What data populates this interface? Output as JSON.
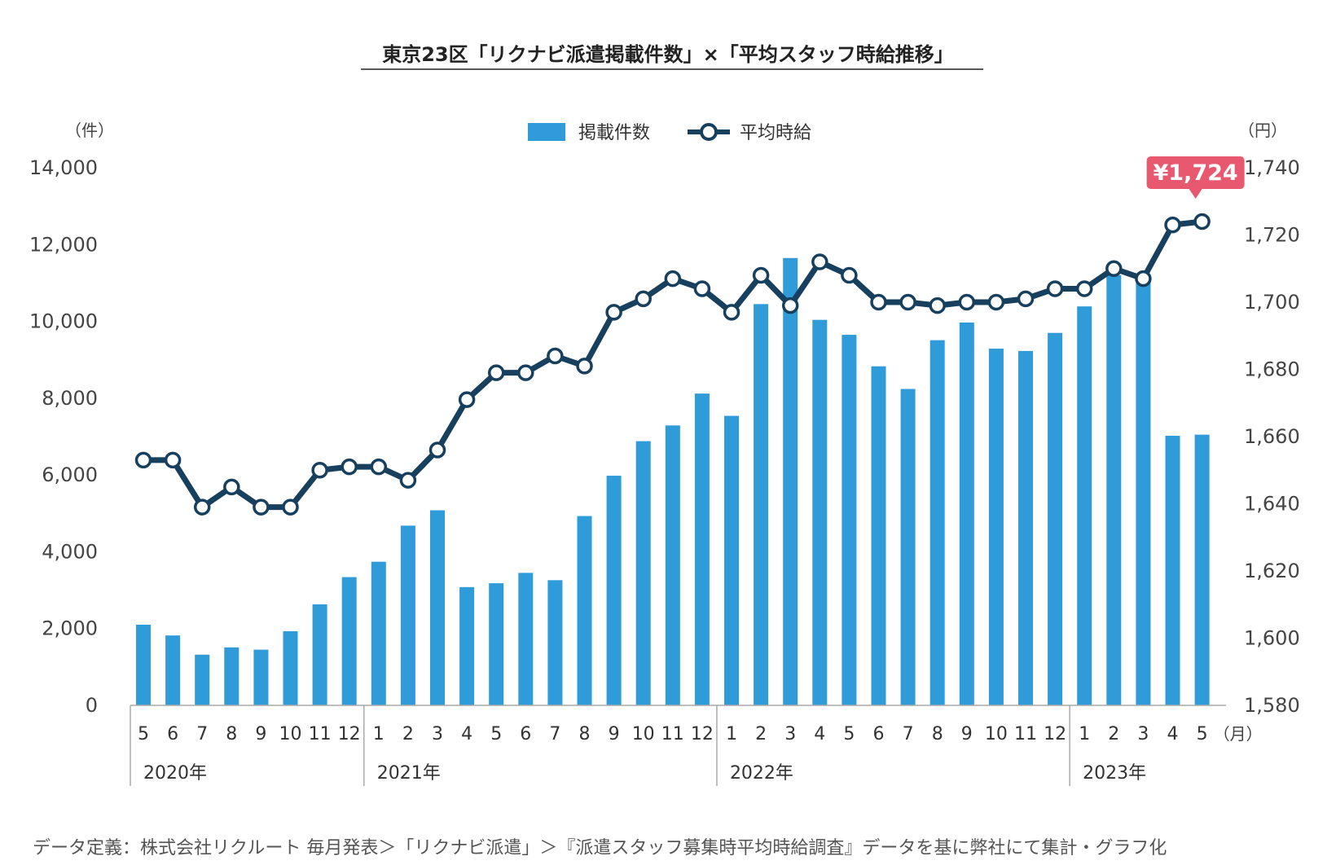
{
  "chart_data": {
    "type": "bar",
    "title": "東京23区「リクナビ派遣掲載件数」×「平均スタッフ時給推移」",
    "left_unit": "（件）",
    "right_unit": "（円）",
    "month_unit": "（月）",
    "categories": [
      "5",
      "6",
      "7",
      "8",
      "9",
      "10",
      "11",
      "12",
      "1",
      "2",
      "3",
      "4",
      "5",
      "6",
      "7",
      "8",
      "9",
      "10",
      "11",
      "12",
      "1",
      "2",
      "3",
      "4",
      "5",
      "6",
      "7",
      "8",
      "9",
      "10",
      "11",
      "12",
      "1",
      "2",
      "3",
      "4",
      "5"
    ],
    "year_groups": [
      {
        "label": "2020年",
        "start": 0,
        "count": 8
      },
      {
        "label": "2021年",
        "start": 8,
        "count": 12
      },
      {
        "label": "2022年",
        "start": 20,
        "count": 12
      },
      {
        "label": "2023年",
        "start": 32,
        "count": 5
      }
    ],
    "series": [
      {
        "name": "掲載件数",
        "type": "bar",
        "axis": "left",
        "color": "#2f9bd8",
        "values": [
          2100,
          1820,
          1320,
          1510,
          1450,
          1930,
          2630,
          3340,
          3740,
          4680,
          5080,
          3080,
          3180,
          3450,
          3260,
          4930,
          5980,
          6880,
          7290,
          8120,
          7540,
          10450,
          11650,
          10040,
          9650,
          8830,
          8240,
          9510,
          9970,
          9290,
          9230,
          9700,
          10390,
          11200,
          11080,
          7020,
          7050
        ]
      },
      {
        "name": "平均時給",
        "type": "line",
        "axis": "right",
        "color": "#17405e",
        "values": [
          1653,
          1653,
          1639,
          1645,
          1639,
          1639,
          1650,
          1651,
          1651,
          1647,
          1656,
          1671,
          1679,
          1679,
          1684,
          1681,
          1697,
          1701,
          1707,
          1704,
          1697,
          1708,
          1699,
          1712,
          1708,
          1700,
          1700,
          1699,
          1700,
          1700,
          1701,
          1704,
          1704,
          1710,
          1707,
          1723,
          1724
        ]
      }
    ],
    "left_axis": {
      "min": 0,
      "max": 14000,
      "ticks": [
        "0",
        "2,000",
        "4,000",
        "6,000",
        "8,000",
        "10,000",
        "12,000",
        "14,000"
      ]
    },
    "right_axis": {
      "min": 1580,
      "max": 1740,
      "ticks": [
        "1,580",
        "1,600",
        "1,620",
        "1,640",
        "1,660",
        "1,680",
        "1,700",
        "1,720",
        "1,740"
      ]
    },
    "callout": {
      "text": "¥1,724",
      "index": 36,
      "color": "#e8596f"
    },
    "legend": {
      "placement": "top-center"
    },
    "grid": false
  },
  "source": "データ定義：株式会社リクルート 毎月発表＞「リクナビ派遣」＞『派遣スタッフ募集時平均時給調査』データを基に弊社にて集計・グラフ化"
}
